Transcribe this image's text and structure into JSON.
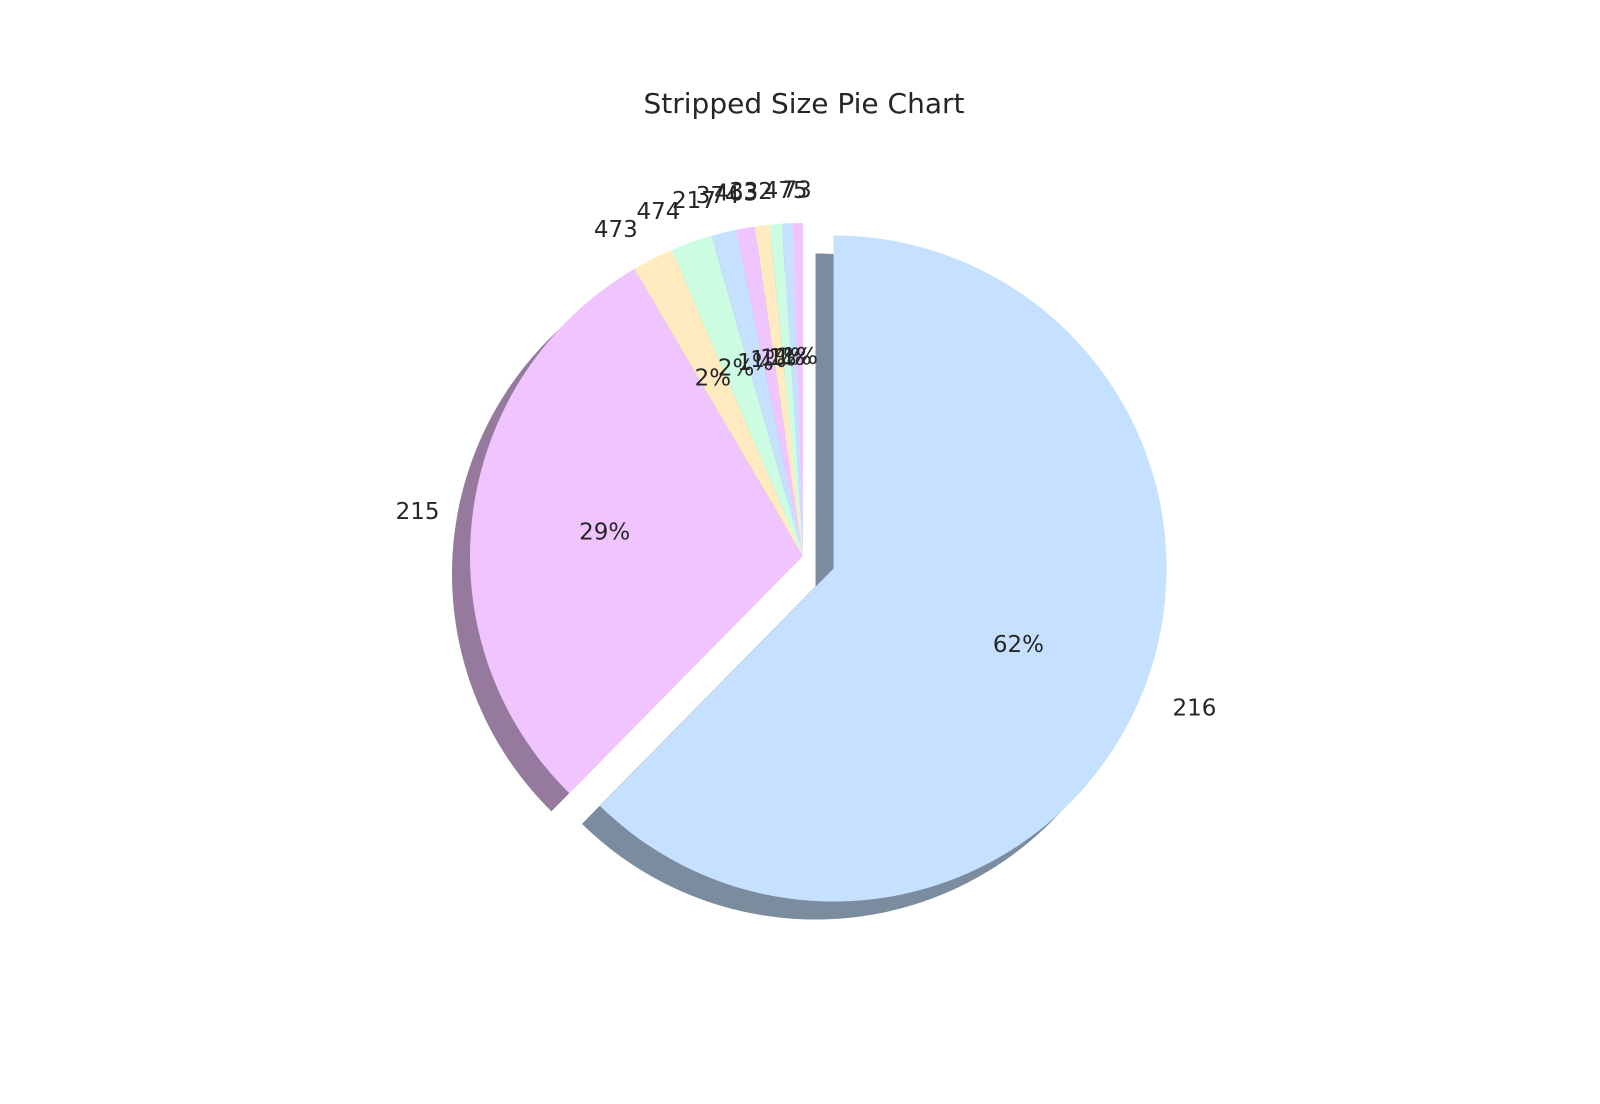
{
  "chart_data": {
    "type": "pie",
    "title": "Stripped Size Pie Chart",
    "slices": [
      {
        "label": "216",
        "value": 62,
        "pct_label": "62%",
        "color": "#c5e1ff",
        "exploded": true
      },
      {
        "label": "215",
        "value": 29,
        "pct_label": "29%",
        "color": "#f0c5ff",
        "exploded": false
      },
      {
        "label": "473",
        "value": 2,
        "pct_label": "2%",
        "color": "#ffebbf",
        "exploded": false
      },
      {
        "label": "474",
        "value": 2,
        "pct_label": "2%",
        "color": "#ccfce2",
        "exploded": false
      },
      {
        "label": "217",
        "value": 1.2,
        "pct_label": "1%",
        "color": "#c5e1ff",
        "exploded": false
      },
      {
        "label": "374",
        "value": 0.9,
        "pct_label": "1%",
        "color": "#f0c5ff",
        "exploded": false
      },
      {
        "label": "463",
        "value": 0.7,
        "pct_label": "1%",
        "color": "#ffebbf",
        "exploded": false
      },
      {
        "label": "332",
        "value": 0.6,
        "pct_label": "1%",
        "color": "#ccfce2",
        "exploded": false
      },
      {
        "label": "475",
        "value": 0.5,
        "pct_label": "1%",
        "color": "#c5e1ff",
        "exploded": false
      },
      {
        "label": "73",
        "value": 0.5,
        "pct_label": "1%",
        "color": "#f0c5ff",
        "exploded": false
      }
    ],
    "start_angle": 90,
    "direction": "clockwise",
    "shadow": true,
    "legend": "none"
  }
}
